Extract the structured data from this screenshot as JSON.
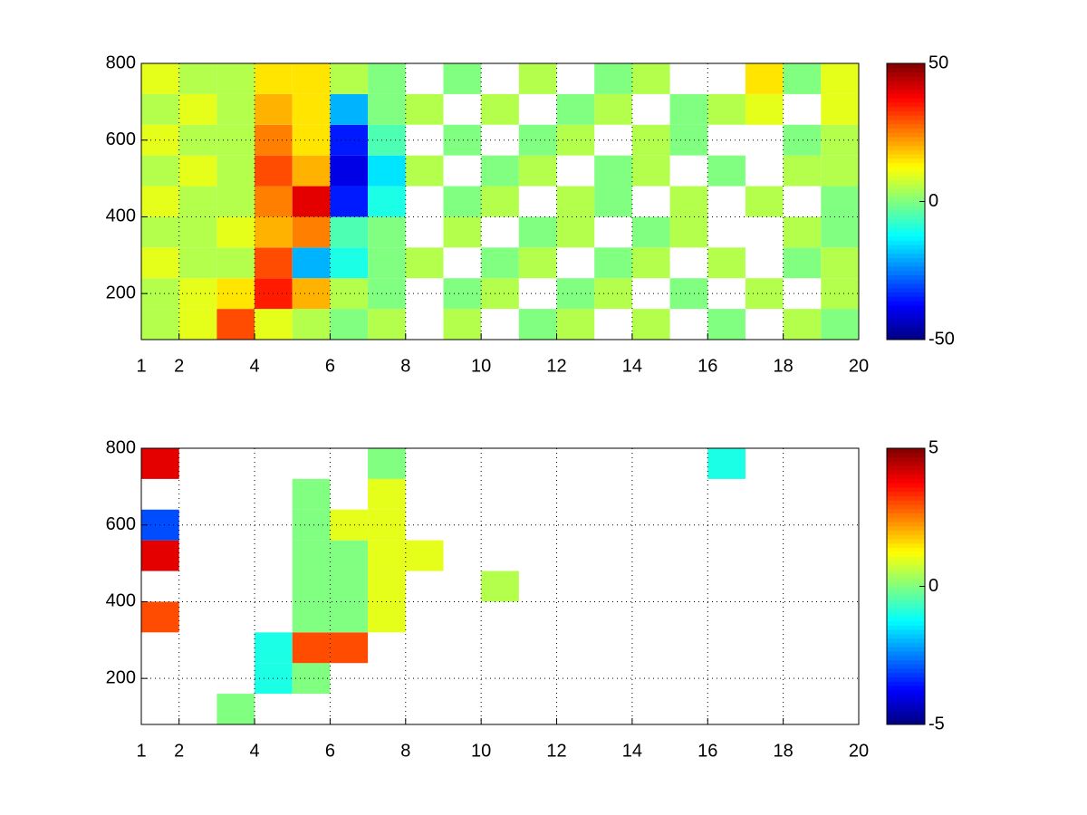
{
  "chart_data": [
    {
      "type": "heatmap",
      "x": [
        1.5,
        2.5,
        3.5,
        4.5,
        5.5,
        6.5,
        7.5,
        8.5,
        9.5,
        10.5,
        11.5,
        12.5,
        13.5,
        14.5,
        15.5,
        16.5,
        17.5,
        18.5,
        19.5
      ],
      "y": [
        120,
        200,
        280,
        360,
        440,
        520,
        600,
        680,
        760
      ],
      "z": [
        [
          5,
          10,
          30,
          10,
          5,
          0,
          5,
          null,
          5,
          null,
          0,
          5,
          null,
          5,
          null,
          0,
          null,
          5,
          0
        ],
        [
          5,
          10,
          15,
          35,
          20,
          5,
          0,
          null,
          0,
          5,
          null,
          0,
          5,
          null,
          0,
          null,
          5,
          null,
          5
        ],
        [
          10,
          5,
          5,
          30,
          -20,
          -10,
          0,
          5,
          null,
          0,
          5,
          null,
          0,
          5,
          null,
          5,
          null,
          0,
          5
        ],
        [
          5,
          5,
          10,
          20,
          25,
          -5,
          0,
          null,
          5,
          null,
          0,
          5,
          null,
          0,
          5,
          null,
          null,
          5,
          0
        ],
        [
          10,
          5,
          5,
          25,
          40,
          -35,
          -10,
          null,
          0,
          5,
          null,
          5,
          0,
          null,
          5,
          null,
          5,
          null,
          0
        ],
        [
          5,
          10,
          5,
          30,
          20,
          -40,
          -15,
          5,
          null,
          0,
          5,
          null,
          0,
          5,
          null,
          0,
          null,
          5,
          5
        ],
        [
          10,
          5,
          5,
          25,
          15,
          -35,
          -5,
          null,
          0,
          null,
          0,
          5,
          null,
          5,
          0,
          null,
          null,
          0,
          5
        ],
        [
          5,
          10,
          5,
          20,
          15,
          -20,
          0,
          5,
          null,
          5,
          null,
          0,
          5,
          null,
          0,
          5,
          10,
          null,
          10
        ],
        [
          10,
          5,
          5,
          15,
          15,
          5,
          0,
          null,
          0,
          null,
          5,
          null,
          0,
          5,
          null,
          null,
          15,
          0,
          10
        ]
      ],
      "xlim": [
        1,
        20
      ],
      "xticks": [
        1,
        2,
        4,
        6,
        8,
        10,
        12,
        14,
        16,
        18,
        20
      ],
      "ylim": [
        80,
        800
      ],
      "yticks": [
        200,
        400,
        600,
        800
      ],
      "clim": [
        -50,
        50
      ],
      "cticks": [
        -50,
        0,
        50
      ],
      "colormap": "jet",
      "grid": true
    },
    {
      "type": "heatmap",
      "x": [
        1.5,
        2.5,
        3.5,
        4.5,
        5.5,
        6.5,
        7.5,
        8.5,
        9.5,
        10.5,
        11.5,
        12.5,
        13.5,
        14.5,
        15.5,
        16.5,
        17.5,
        18.5,
        19.5
      ],
      "y": [
        120,
        200,
        280,
        360,
        440,
        520,
        600,
        680,
        760
      ],
      "z": [
        [
          null,
          null,
          0,
          null,
          null,
          null,
          null,
          null,
          null,
          null,
          null,
          null,
          null,
          null,
          null,
          null,
          null,
          null,
          null
        ],
        [
          null,
          null,
          null,
          -1,
          0,
          null,
          null,
          null,
          null,
          null,
          null,
          null,
          null,
          null,
          null,
          null,
          null,
          null,
          null
        ],
        [
          null,
          null,
          null,
          -1,
          3,
          3,
          null,
          null,
          null,
          null,
          null,
          null,
          null,
          null,
          null,
          null,
          null,
          null,
          null
        ],
        [
          3,
          null,
          null,
          null,
          0,
          0,
          1,
          null,
          null,
          null,
          null,
          null,
          null,
          null,
          null,
          null,
          null,
          null,
          null
        ],
        [
          null,
          null,
          null,
          null,
          0,
          0,
          1,
          null,
          null,
          0.5,
          null,
          null,
          null,
          null,
          null,
          null,
          null,
          null,
          null
        ],
        [
          4,
          null,
          null,
          null,
          0,
          0,
          1,
          1,
          null,
          null,
          null,
          null,
          null,
          null,
          null,
          null,
          null,
          null,
          null
        ],
        [
          -3,
          null,
          null,
          null,
          0,
          1,
          1,
          null,
          null,
          null,
          null,
          null,
          null,
          null,
          null,
          null,
          null,
          null,
          null
        ],
        [
          null,
          null,
          null,
          null,
          0,
          null,
          1,
          null,
          null,
          null,
          null,
          null,
          null,
          null,
          null,
          null,
          null,
          null,
          null
        ],
        [
          4,
          null,
          null,
          null,
          null,
          null,
          0,
          null,
          null,
          null,
          null,
          null,
          null,
          null,
          null,
          -1,
          null,
          null,
          null
        ]
      ],
      "xlim": [
        1,
        20
      ],
      "xticks": [
        1,
        2,
        4,
        6,
        8,
        10,
        12,
        14,
        16,
        18,
        20
      ],
      "ylim": [
        80,
        800
      ],
      "yticks": [
        200,
        400,
        600,
        800
      ],
      "clim": [
        -5,
        5
      ],
      "cticks": [
        -5,
        0,
        5
      ],
      "colormap": "jet",
      "grid": true
    }
  ]
}
